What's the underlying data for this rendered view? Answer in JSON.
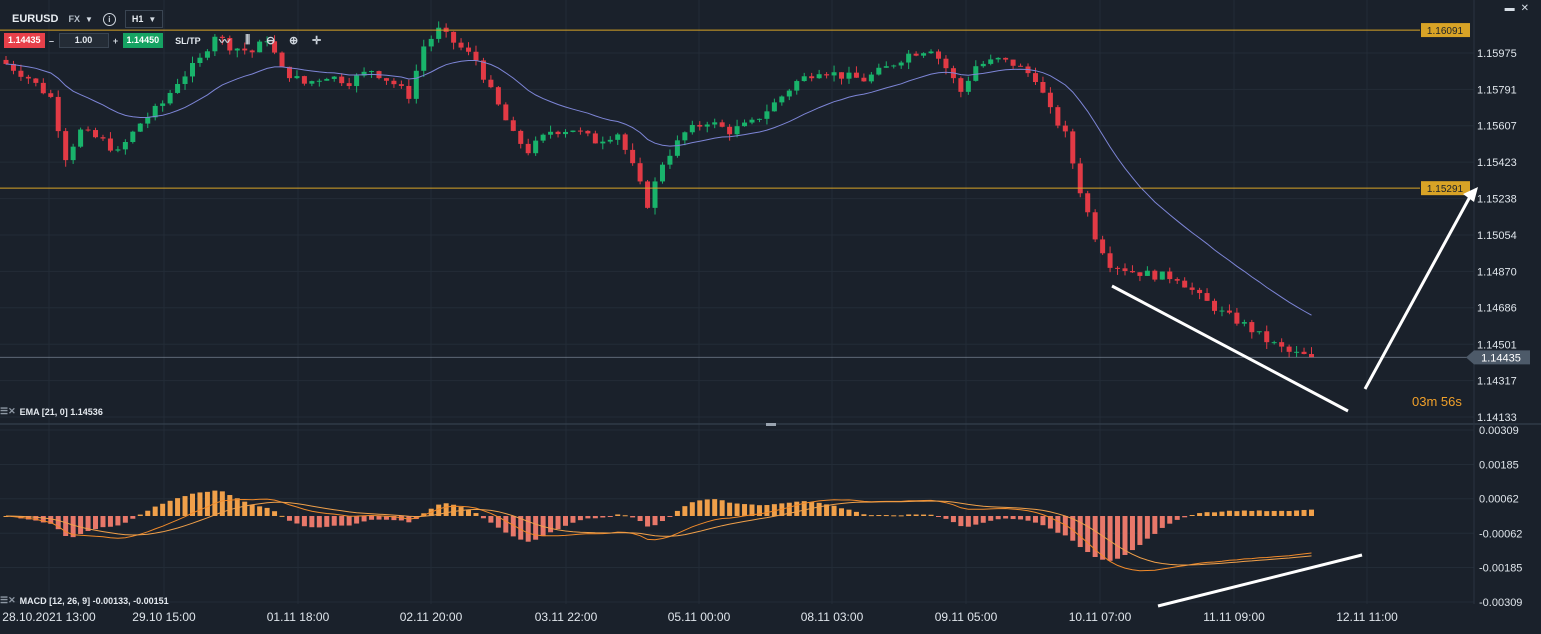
{
  "toolbar": {
    "symbol": "EURUSD",
    "exchange": "FX",
    "timeframe": "H1",
    "sell_price": "1.14435",
    "quantity": "1.00",
    "buy_price": "1.14450",
    "sltp_label": "SL/TP",
    "minus": "–",
    "plus": "+"
  },
  "indicators": {
    "ema_label": "EMA [21, 0] 1.14536",
    "macd_label": "MACD [12, 26, 9] -0.00133, -0.00151"
  },
  "timer": "03m 56s",
  "colors": {
    "bg": "#1a212b",
    "grid": "#232c37",
    "up": "#19b36b",
    "down": "#e23a45",
    "ema": "#7d85d6",
    "level": "#d8a326",
    "macd_line": "#f08a2a",
    "signal_line": "#f0a04a",
    "hist_pos": "#f0a04a",
    "hist_neg": "#e8786a",
    "trend": "#ffffff",
    "price_line": "#8a96a6"
  },
  "chart_data": [
    {
      "type": "candlestick",
      "symbol": "EURUSD",
      "timeframe": "H1",
      "y_ticks": [
        "1.15975",
        "1.15791",
        "1.15607",
        "1.15423",
        "1.15238",
        "1.15054",
        "1.14870",
        "1.14686",
        "1.14501",
        "1.14317",
        "1.14133"
      ],
      "ylim": [
        1.14133,
        1.16094
      ],
      "x_ticks": [
        "28.10.2021 13:00",
        "29.10 15:00",
        "01.11 18:00",
        "02.11 20:00",
        "03.11 22:00",
        "05.11 00:00",
        "08.11 03:00",
        "09.11 05:00",
        "10.11 07:00",
        "11.11 09:00",
        "12.11 11:00"
      ],
      "current_price": "1.14435",
      "levels": [
        {
          "label": "1.16091",
          "value": 1.16091
        },
        {
          "label": "1.15291",
          "value": 1.15291
        }
      ],
      "ema": {
        "label": "EMA [21, 0]",
        "value": 1.14536
      },
      "close_path": [
        [
          0,
          1.1592
        ],
        [
          3,
          1.1585
        ],
        [
          6,
          1.1575
        ],
        [
          8,
          1.1545
        ],
        [
          10,
          1.1558
        ],
        [
          13,
          1.1553
        ],
        [
          15,
          1.1547
        ],
        [
          18,
          1.1562
        ],
        [
          21,
          1.1572
        ],
        [
          23,
          1.1583
        ],
        [
          26,
          1.1594
        ],
        [
          28,
          1.1607
        ],
        [
          30,
          1.1601
        ],
        [
          33,
          1.1598
        ],
        [
          35,
          1.1605
        ],
        [
          37,
          1.1589
        ],
        [
          40,
          1.1582
        ],
        [
          43,
          1.1586
        ],
        [
          46,
          1.1583
        ],
        [
          49,
          1.1589
        ],
        [
          52,
          1.1582
        ],
        [
          54,
          1.1576
        ],
        [
          56,
          1.1601
        ],
        [
          58,
          1.1609
        ],
        [
          60,
          1.1603
        ],
        [
          63,
          1.1594
        ],
        [
          65,
          1.1578
        ],
        [
          68,
          1.1556
        ],
        [
          70,
          1.1548
        ],
        [
          73,
          1.1558
        ],
        [
          76,
          1.1559
        ],
        [
          79,
          1.1553
        ],
        [
          82,
          1.1557
        ],
        [
          84,
          1.154
        ],
        [
          86,
          1.1521
        ],
        [
          88,
          1.1542
        ],
        [
          91,
          1.1557
        ],
        [
          94,
          1.1563
        ],
        [
          97,
          1.1558
        ],
        [
          100,
          1.1562
        ],
        [
          103,
          1.1572
        ],
        [
          106,
          1.1583
        ],
        [
          109,
          1.1589
        ],
        [
          112,
          1.1586
        ],
        [
          115,
          1.1584
        ],
        [
          118,
          1.159
        ],
        [
          121,
          1.1597
        ],
        [
          124,
          1.16
        ],
        [
          126,
          1.159
        ],
        [
          128,
          1.1578
        ],
        [
          130,
          1.1591
        ],
        [
          133,
          1.1594
        ],
        [
          135,
          1.1592
        ],
        [
          138,
          1.1585
        ],
        [
          140,
          1.1568
        ],
        [
          142,
          1.1556
        ],
        [
          144,
          1.1528
        ],
        [
          146,
          1.1505
        ],
        [
          148,
          1.1491
        ],
        [
          151,
          1.1487
        ],
        [
          154,
          1.1485
        ],
        [
          157,
          1.1484
        ],
        [
          160,
          1.1474
        ],
        [
          163,
          1.1466
        ],
        [
          166,
          1.146
        ],
        [
          169,
          1.1452
        ],
        [
          172,
          1.1446
        ],
        [
          175,
          1.14435
        ]
      ]
    },
    {
      "type": "macd",
      "label": "MACD [12, 26, 9]",
      "macd": -0.00133,
      "signal": -0.00151,
      "y_ticks": [
        "0.00309",
        "0.00185",
        "0.00062",
        "-0.00062",
        "-0.00185",
        "-0.00309"
      ],
      "ylim": [
        -0.00309,
        0.00309
      ]
    }
  ]
}
